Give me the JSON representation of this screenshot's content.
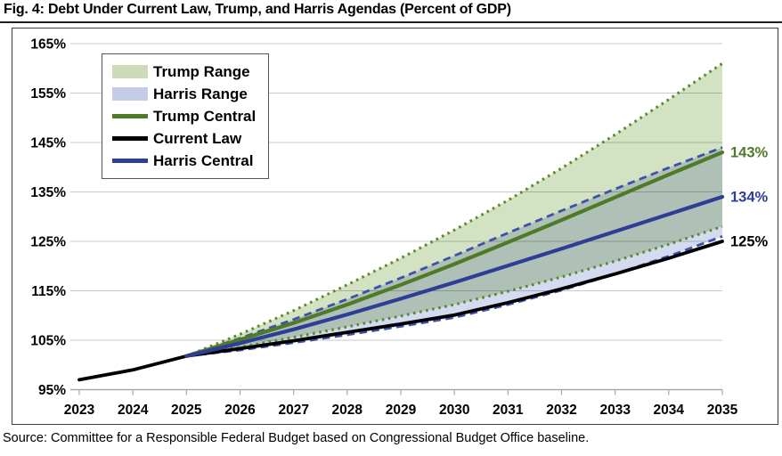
{
  "title": "Fig. 4: Debt Under Current Law, Trump, and Harris Agendas (Percent of GDP)",
  "source": "Source: Committee for a Responsible Federal Budget based on Congressional Budget Office baseline.",
  "chart_data": {
    "type": "line",
    "title": "Fig. 4: Debt Under Current Law, Trump, and Harris Agendas (Percent of GDP)",
    "xlabel": "",
    "ylabel": "Percent of GDP",
    "x_years": [
      2023,
      2024,
      2025,
      2026,
      2027,
      2028,
      2029,
      2030,
      2031,
      2032,
      2033,
      2034,
      2035
    ],
    "ylim": [
      93,
      168
    ],
    "yticks": [
      95,
      105,
      115,
      125,
      135,
      145,
      155,
      165
    ],
    "ytick_suffix": "%",
    "grid": true,
    "legend_position": "top-left",
    "axis_color": "#9e9e9e",
    "gridline_color": "#c9c9c9",
    "bands": [
      {
        "name": "Trump Range",
        "fill": "#d3e2c2",
        "edge_color": "#5a8a2a",
        "edge_style": "dotted",
        "upper": [
          null,
          null,
          101.8,
          106.2,
          111.0,
          116.2,
          121.6,
          127.3,
          133.3,
          139.8,
          146.6,
          153.7,
          161.0
        ],
        "lower": [
          null,
          null,
          101.8,
          103.6,
          105.6,
          107.7,
          109.9,
          112.2,
          114.9,
          117.8,
          121.0,
          124.4,
          128.0
        ]
      },
      {
        "name": "Harris Range",
        "fill": "#c6cdea",
        "edge_color": "#3d51ab",
        "edge_style": "dashed",
        "upper": [
          null,
          null,
          101.8,
          105.4,
          109.2,
          113.3,
          117.6,
          122.1,
          126.7,
          131.2,
          135.6,
          139.9,
          144.0
        ],
        "lower": [
          null,
          null,
          101.8,
          103.0,
          104.5,
          106.1,
          107.8,
          109.6,
          112.2,
          115.1,
          118.4,
          122.0,
          126.0
        ]
      }
    ],
    "lines": [
      {
        "name": "Current Law",
        "color": "#000000",
        "width": 3.8,
        "values": [
          97.0,
          99.0,
          101.8,
          103.3,
          104.9,
          106.6,
          108.3,
          110.1,
          112.6,
          115.4,
          118.4,
          121.6,
          125.0
        ]
      },
      {
        "name": "Trump Central",
        "color": "#4f7a28",
        "width": 4.2,
        "values": [
          null,
          null,
          101.8,
          105.1,
          108.5,
          112.2,
          116.2,
          120.4,
          124.8,
          129.3,
          133.9,
          138.5,
          143.0
        ]
      },
      {
        "name": "Harris Central",
        "color": "#2e3e96",
        "width": 4.2,
        "values": [
          null,
          null,
          101.8,
          104.4,
          107.2,
          110.2,
          113.4,
          116.7,
          120.1,
          123.5,
          127.0,
          130.5,
          134.0
        ]
      }
    ],
    "end_labels": [
      {
        "text": "143%",
        "value": 143,
        "color": "#4f7a28"
      },
      {
        "text": "134%",
        "value": 134,
        "color": "#2e3e96"
      },
      {
        "text": "125%",
        "value": 125,
        "color": "#000000"
      }
    ],
    "legend": [
      {
        "label": "Trump Range",
        "swatch": "fill",
        "color": "#ccdcb8"
      },
      {
        "label": "Harris Range",
        "swatch": "fill",
        "color": "#c5cce8"
      },
      {
        "label": "Trump Central",
        "swatch": "line",
        "color": "#4f7a28"
      },
      {
        "label": "Current Law",
        "swatch": "line",
        "color": "#000000"
      },
      {
        "label": "Harris Central",
        "swatch": "line",
        "color": "#2e3e96"
      }
    ]
  }
}
